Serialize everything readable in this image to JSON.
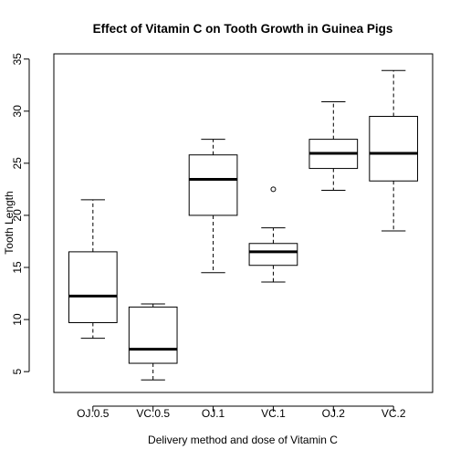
{
  "chart_data": {
    "type": "box",
    "title": "Effect of Vitamin C on Tooth Growth in Guinea Pigs",
    "xlabel": "Delivery method and dose of Vitamin C",
    "ylabel": "Tooth Length",
    "ylim": [
      3,
      35.5
    ],
    "yticks": [
      5,
      10,
      15,
      20,
      25,
      30,
      35
    ],
    "categories": [
      "OJ.0.5",
      "VC.0.5",
      "OJ.1",
      "VC.1",
      "OJ.2",
      "VC.2"
    ],
    "boxes": [
      {
        "category": "OJ.0.5",
        "min": 8.2,
        "q1": 9.7,
        "median": 12.25,
        "q3": 16.5,
        "max": 21.5,
        "outliers": []
      },
      {
        "category": "VC.0.5",
        "min": 4.2,
        "q1": 5.8,
        "median": 7.15,
        "q3": 11.2,
        "max": 11.5,
        "outliers": []
      },
      {
        "category": "OJ.1",
        "min": 14.5,
        "q1": 20.0,
        "median": 23.45,
        "q3": 25.8,
        "max": 27.3,
        "outliers": []
      },
      {
        "category": "VC.1",
        "min": 13.6,
        "q1": 15.2,
        "median": 16.5,
        "q3": 17.3,
        "max": 18.8,
        "outliers": [
          22.5
        ]
      },
      {
        "category": "OJ.2",
        "min": 22.4,
        "q1": 24.5,
        "median": 25.95,
        "q3": 27.3,
        "max": 30.9,
        "outliers": []
      },
      {
        "category": "VC.2",
        "min": 18.5,
        "q1": 23.3,
        "median": 25.95,
        "q3": 29.5,
        "max": 33.9,
        "outliers": []
      }
    ],
    "grid": false,
    "legend": "none"
  }
}
